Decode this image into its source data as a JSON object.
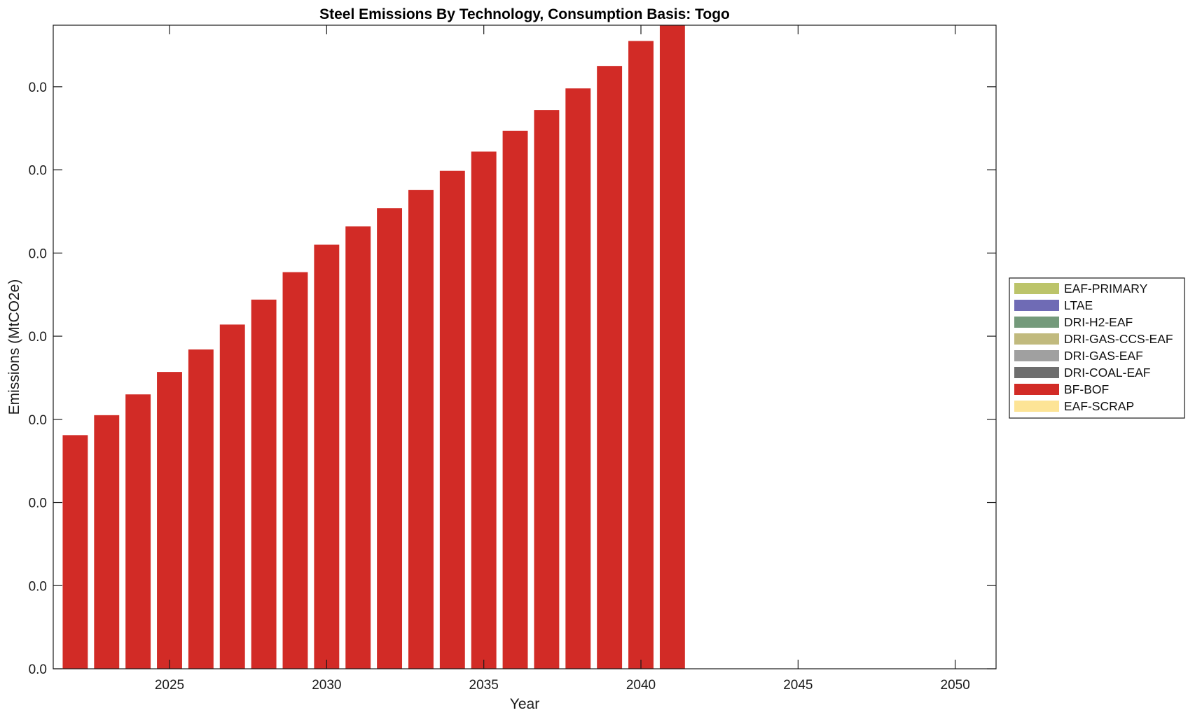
{
  "chart_data": {
    "type": "bar",
    "stacked": true,
    "title": "Steel Emissions By Technology, Consumption Basis: Togo",
    "xlabel": "Year",
    "ylabel": "Emissions (MtCO2e)",
    "xlim": [
      2021.3,
      2051.3
    ],
    "ylim": [
      0,
      0.0774
    ],
    "x_ticks": [
      2025,
      2030,
      2035,
      2040,
      2045,
      2050
    ],
    "y_ticks": [
      0,
      0.01,
      0.02,
      0.03,
      0.04,
      0.05,
      0.06,
      0.07
    ],
    "y_tick_labels": [
      "0.0",
      "0.0",
      "0.0",
      "0.0",
      "0.0",
      "0.0",
      "0.0",
      "0.0"
    ],
    "grid": false,
    "legend_position": "outside-right",
    "x": [
      2022,
      2023,
      2024,
      2025,
      2026,
      2027,
      2028,
      2029,
      2030,
      2031,
      2032,
      2033,
      2034,
      2035,
      2036,
      2037,
      2038,
      2039,
      2040,
      2041
    ],
    "series": [
      {
        "name": "EAF-PRIMARY",
        "color": "#bcc46a",
        "values": [
          0,
          0,
          0,
          0,
          0,
          0,
          0,
          0,
          0,
          0,
          0,
          0,
          0,
          0,
          0,
          0,
          0,
          0,
          0,
          0
        ]
      },
      {
        "name": "LTAE",
        "color": "#6f6bb5",
        "values": [
          0,
          0,
          0,
          0,
          0,
          0,
          0,
          0,
          0,
          0,
          0,
          0,
          0,
          0,
          0,
          0,
          0,
          0,
          0,
          0
        ]
      },
      {
        "name": "DRI-H2-EAF",
        "color": "#749a7b",
        "values": [
          0,
          0,
          0,
          0,
          0,
          0,
          0,
          0,
          0,
          0,
          0,
          0,
          0,
          0,
          0,
          0,
          0,
          0,
          0,
          0
        ]
      },
      {
        "name": "DRI-GAS-CCS-EAF",
        "color": "#c1ba7e",
        "values": [
          0,
          0,
          0,
          0,
          0,
          0,
          0,
          0,
          0,
          0,
          0,
          0,
          0,
          0,
          0,
          0,
          0,
          0,
          0,
          0
        ]
      },
      {
        "name": "DRI-GAS-EAF",
        "color": "#a0a0a0",
        "values": [
          0,
          0,
          0,
          0,
          0,
          0,
          0,
          0,
          0,
          0,
          0,
          0,
          0,
          0,
          0,
          0,
          0,
          0,
          0,
          0
        ]
      },
      {
        "name": "DRI-COAL-EAF",
        "color": "#6e6e6e",
        "values": [
          0,
          0,
          0,
          0,
          0,
          0,
          0,
          0,
          0,
          0,
          0,
          0,
          0,
          0,
          0,
          0,
          0,
          0,
          0,
          0
        ]
      },
      {
        "name": "BF-BOF",
        "color": "#d22b26",
        "values": [
          0.0281,
          0.0305,
          0.033,
          0.0357,
          0.0384,
          0.0414,
          0.0444,
          0.0477,
          0.051,
          0.0532,
          0.0554,
          0.0576,
          0.0599,
          0.0622,
          0.0647,
          0.0672,
          0.0698,
          0.0725,
          0.0755,
          0.0774
        ]
      },
      {
        "name": "EAF-SCRAP",
        "color": "#fde496",
        "values": [
          0,
          0,
          0,
          0,
          0,
          0,
          0,
          0,
          0,
          0,
          0,
          0,
          0,
          0,
          0,
          0,
          0,
          0,
          0,
          0
        ]
      }
    ]
  }
}
